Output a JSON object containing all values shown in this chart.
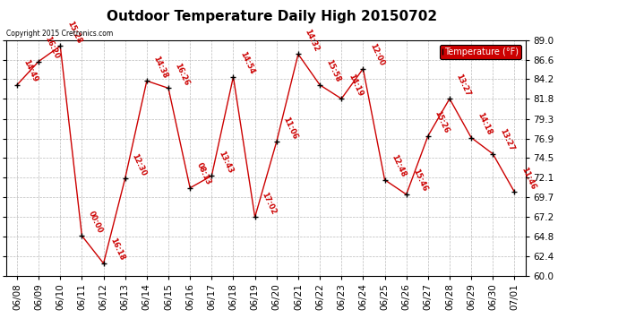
{
  "title": "Outdoor Temperature Daily High 20150702",
  "copyright": "Copyright 2015 Cretronics.com",
  "legend_label": "Temperature (°F)",
  "dates": [
    "06/08",
    "06/09",
    "06/10",
    "06/11",
    "06/12",
    "06/13",
    "06/14",
    "06/15",
    "06/16",
    "06/17",
    "06/18",
    "06/19",
    "06/20",
    "06/21",
    "06/22",
    "06/23",
    "06/24",
    "06/25",
    "06/26",
    "06/27",
    "06/28",
    "06/29",
    "06/30",
    "07/01"
  ],
  "values": [
    83.5,
    86.4,
    88.3,
    64.9,
    61.5,
    72.0,
    84.0,
    83.1,
    70.8,
    72.3,
    84.5,
    67.2,
    76.5,
    87.3,
    83.5,
    81.8,
    85.5,
    71.8,
    70.0,
    77.2,
    81.8,
    77.0,
    75.0,
    70.3
  ],
  "time_labels": [
    "14:49",
    "16:20",
    "15:28",
    "00:00",
    "16:18",
    "12:30",
    "14:38",
    "16:26",
    "08:13",
    "13:43",
    "14:54",
    "17:02",
    "11:06",
    "14:32",
    "15:58",
    "14:19",
    "12:00",
    "12:48",
    "15:46",
    "15:26",
    "13:27",
    "14:18",
    "13:27",
    "11:46"
  ],
  "ylim": [
    60.0,
    89.0
  ],
  "yticks": [
    60.0,
    62.4,
    64.8,
    67.2,
    69.7,
    72.1,
    74.5,
    76.9,
    79.3,
    81.8,
    84.2,
    86.6,
    89.0
  ],
  "line_color": "#cc0000",
  "marker_color": "#000000",
  "bg_color": "#ffffff",
  "grid_color": "#aaaaaa",
  "title_fontsize": 11,
  "tick_fontsize": 7.5,
  "annot_fontsize": 6.0
}
